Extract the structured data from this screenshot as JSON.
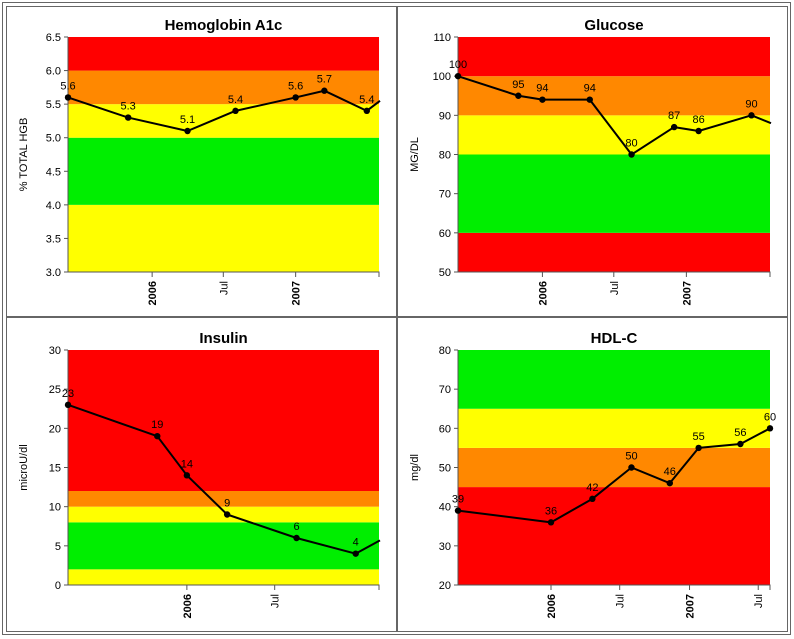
{
  "chart_data": [
    {
      "type": "line",
      "title": "Hemoglobin A1c",
      "ylabel": "% TOTAL HGB",
      "xlabel": "",
      "ylim": [
        3.0,
        6.5
      ],
      "yticks": [
        "3.0",
        "3.5",
        "4.0",
        "4.5",
        "5.0",
        "5.5",
        "6.0",
        "6.5"
      ],
      "xlim": [
        "2005-06-01",
        "2007-08-01"
      ],
      "xticks": [
        {
          "label": "2006",
          "date": "2006-01-01",
          "bold": true
        },
        {
          "label": "Jul",
          "date": "2006-07-01",
          "bold": false
        },
        {
          "label": "2007",
          "date": "2007-01-01",
          "bold": true
        }
      ],
      "bands": [
        {
          "from": 3.0,
          "to": 4.0,
          "color": "#ffff00"
        },
        {
          "from": 4.0,
          "to": 5.0,
          "color": "#00ee00"
        },
        {
          "from": 5.0,
          "to": 5.5,
          "color": "#ffff00"
        },
        {
          "from": 5.5,
          "to": 6.0,
          "color": "#ff8800"
        },
        {
          "from": 6.0,
          "to": 6.5,
          "color": "#ff0000"
        }
      ],
      "points": [
        {
          "x": "2005-06-01",
          "y": 5.6,
          "label": "5.6"
        },
        {
          "x": "2005-11-01",
          "y": 5.3,
          "label": "5.3"
        },
        {
          "x": "2006-04-01",
          "y": 5.1,
          "label": "5.1"
        },
        {
          "x": "2006-08-01",
          "y": 5.4,
          "label": "5.4"
        },
        {
          "x": "2007-01-01",
          "y": 5.6,
          "label": "5.6"
        },
        {
          "x": "2007-03-15",
          "y": 5.7,
          "label": "5.7"
        },
        {
          "x": "2007-07-01",
          "y": 5.4,
          "label": "5.4"
        }
      ],
      "trailing_y": 5.55
    },
    {
      "type": "line",
      "title": "Glucose",
      "ylabel": "MG/DL",
      "xlabel": "",
      "ylim": [
        50,
        110
      ],
      "yticks": [
        "50",
        "60",
        "70",
        "80",
        "90",
        "100",
        "110"
      ],
      "xlim": [
        "2005-06-01",
        "2007-08-01"
      ],
      "xticks": [
        {
          "label": "2006",
          "date": "2006-01-01",
          "bold": true
        },
        {
          "label": "Jul",
          "date": "2006-07-01",
          "bold": false
        },
        {
          "label": "2007",
          "date": "2007-01-01",
          "bold": true
        }
      ],
      "bands": [
        {
          "from": 50,
          "to": 60,
          "color": "#ff0000"
        },
        {
          "from": 60,
          "to": 80,
          "color": "#00ee00"
        },
        {
          "from": 80,
          "to": 90,
          "color": "#ffff00"
        },
        {
          "from": 90,
          "to": 100,
          "color": "#ff8800"
        },
        {
          "from": 100,
          "to": 110,
          "color": "#ff0000"
        }
      ],
      "points": [
        {
          "x": "2005-06-01",
          "y": 100,
          "label": "100"
        },
        {
          "x": "2005-11-01",
          "y": 95,
          "label": "95"
        },
        {
          "x": "2006-01-01",
          "y": 94,
          "label": "94"
        },
        {
          "x": "2006-05-01",
          "y": 94,
          "label": "94"
        },
        {
          "x": "2006-08-15",
          "y": 80,
          "label": "80"
        },
        {
          "x": "2006-12-01",
          "y": 87,
          "label": "87"
        },
        {
          "x": "2007-02-01",
          "y": 86,
          "label": "86"
        },
        {
          "x": "2007-06-15",
          "y": 90,
          "label": "90"
        }
      ],
      "trailing_y": 88
    },
    {
      "type": "line",
      "title": "Insulin",
      "ylabel": "microU/dl",
      "xlabel": "",
      "ylim": [
        0,
        30
      ],
      "yticks": [
        "0",
        "5",
        "10",
        "15",
        "20",
        "25",
        "30"
      ],
      "xlim": [
        "2005-05-01",
        "2007-02-01"
      ],
      "xticks": [
        {
          "label": "2006",
          "date": "2006-01-01",
          "bold": true
        },
        {
          "label": "Jul",
          "date": "2006-07-01",
          "bold": false
        }
      ],
      "bands": [
        {
          "from": 0,
          "to": 2,
          "color": "#ffff00"
        },
        {
          "from": 2,
          "to": 8,
          "color": "#00ee00"
        },
        {
          "from": 8,
          "to": 10,
          "color": "#ffff00"
        },
        {
          "from": 10,
          "to": 12,
          "color": "#ff8800"
        },
        {
          "from": 12,
          "to": 30,
          "color": "#ff0000"
        }
      ],
      "points": [
        {
          "x": "2005-05-01",
          "y": 23,
          "label": "23"
        },
        {
          "x": "2005-11-01",
          "y": 19,
          "label": "19"
        },
        {
          "x": "2006-01-01",
          "y": 14,
          "label": "14"
        },
        {
          "x": "2006-03-25",
          "y": 9,
          "label": "9"
        },
        {
          "x": "2006-08-15",
          "y": 6,
          "label": "6"
        },
        {
          "x": "2006-12-15",
          "y": 4,
          "label": "4"
        }
      ],
      "trailing_y": 5.7
    },
    {
      "type": "line",
      "title": "HDL-C",
      "ylabel": "mg/dl",
      "xlabel": "",
      "ylim": [
        20,
        80
      ],
      "yticks": [
        "20",
        "30",
        "40",
        "50",
        "60",
        "70",
        "80"
      ],
      "xlim": [
        "2005-05-01",
        "2007-08-01"
      ],
      "xticks": [
        {
          "label": "2006",
          "date": "2006-01-01",
          "bold": true
        },
        {
          "label": "Jul",
          "date": "2006-07-01",
          "bold": false
        },
        {
          "label": "2007",
          "date": "2007-01-01",
          "bold": true
        },
        {
          "label": "Jul",
          "date": "2007-07-01",
          "bold": false
        }
      ],
      "bands": [
        {
          "from": 20,
          "to": 45,
          "color": "#ff0000"
        },
        {
          "from": 45,
          "to": 55,
          "color": "#ff8800"
        },
        {
          "from": 55,
          "to": 65,
          "color": "#ffff00"
        },
        {
          "from": 65,
          "to": 80,
          "color": "#00ee00"
        }
      ],
      "points": [
        {
          "x": "2005-05-01",
          "y": 39,
          "label": "39"
        },
        {
          "x": "2006-01-01",
          "y": 36,
          "label": "36"
        },
        {
          "x": "2006-04-20",
          "y": 42,
          "label": "42"
        },
        {
          "x": "2006-08-01",
          "y": 50,
          "label": "50"
        },
        {
          "x": "2006-11-10",
          "y": 46,
          "label": "46"
        },
        {
          "x": "2007-01-25",
          "y": 55,
          "label": "55"
        },
        {
          "x": "2007-05-15",
          "y": 56,
          "label": "56"
        },
        {
          "x": "2007-08-01",
          "y": 60,
          "label": "60"
        }
      ]
    }
  ]
}
